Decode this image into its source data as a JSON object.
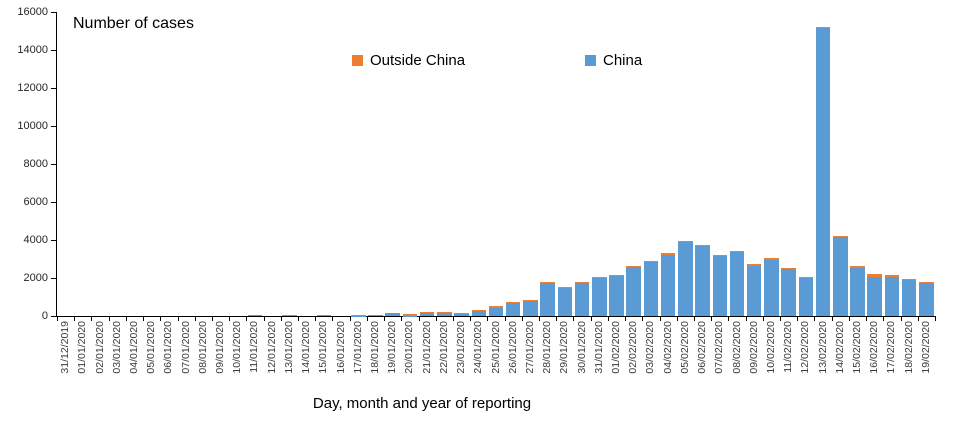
{
  "title": "Number of cases",
  "x_axis_title": "Day, month and year of reporting",
  "legend": [
    {
      "label": "Outside China",
      "color": "#ED7D31"
    },
    {
      "label": "China",
      "color": "#5B9BD5"
    }
  ],
  "colors": {
    "china_bar": "#5B9BD5",
    "outside_china_bar": "#ED7D31",
    "axis": "#000000",
    "tick_label": "#3a3a3a",
    "background": "#ffffff"
  },
  "chart_data": {
    "type": "bar",
    "stacked": true,
    "title": "Number of cases",
    "xlabel": "Day, month and year of reporting",
    "ylabel": "",
    "ylim": [
      0,
      16000
    ],
    "y_ticks": [
      0,
      2000,
      4000,
      6000,
      8000,
      10000,
      12000,
      14000,
      16000
    ],
    "grid": false,
    "legend_position": "top-inside",
    "categories": [
      "31/12/2019",
      "01/01/2020",
      "02/01/2020",
      "03/01/2020",
      "04/01/2020",
      "05/01/2020",
      "06/01/2020",
      "07/01/2020",
      "08/01/2020",
      "09/01/2020",
      "10/01/2020",
      "11/01/2020",
      "12/01/2020",
      "13/01/2020",
      "14/01/2020",
      "15/01/2020",
      "16/01/2020",
      "17/01/2020",
      "18/01/2020",
      "19/01/2020",
      "20/01/2020",
      "21/01/2020",
      "22/01/2020",
      "23/01/2020",
      "24/01/2020",
      "25/01/2020",
      "26/01/2020",
      "27/01/2020",
      "28/01/2020",
      "29/01/2020",
      "30/01/2020",
      "31/01/2020",
      "01/02/2020",
      "02/02/2020",
      "03/02/2020",
      "04/02/2020",
      "05/02/2020",
      "06/02/2020",
      "07/02/2020",
      "08/02/2020",
      "09/02/2020",
      "10/02/2020",
      "11/02/2020",
      "12/02/2020",
      "13/02/2020",
      "14/02/2020",
      "15/02/2020",
      "16/02/2020",
      "17/02/2020",
      "18/02/2020",
      "19/02/2020"
    ],
    "series": [
      {
        "name": "China",
        "color": "#5B9BD5",
        "values": [
          0,
          0,
          0,
          0,
          0,
          0,
          0,
          0,
          0,
          0,
          0,
          41,
          0,
          0,
          0,
          0,
          0,
          5,
          59,
          136,
          19,
          151,
          140,
          97,
          259,
          441,
          665,
          787,
          1753,
          1466,
          1740,
          1980,
          2099,
          2589,
          2825,
          3228,
          3872,
          3689,
          3143,
          3385,
          2652,
          2973,
          2467,
          2015,
          15141,
          4156,
          2538,
          2057,
          2048,
          1893,
          1752
        ]
      },
      {
        "name": "Outside China",
        "color": "#ED7D31",
        "values": [
          0,
          0,
          0,
          0,
          0,
          0,
          0,
          0,
          0,
          0,
          0,
          0,
          0,
          1,
          0,
          1,
          0,
          2,
          0,
          0,
          3,
          4,
          5,
          4,
          2,
          11,
          13,
          8,
          14,
          19,
          14,
          26,
          27,
          19,
          11,
          24,
          28,
          25,
          54,
          18,
          19,
          12,
          76,
          46,
          47,
          66,
          103,
          145,
          93,
          13,
          43
        ]
      }
    ]
  }
}
